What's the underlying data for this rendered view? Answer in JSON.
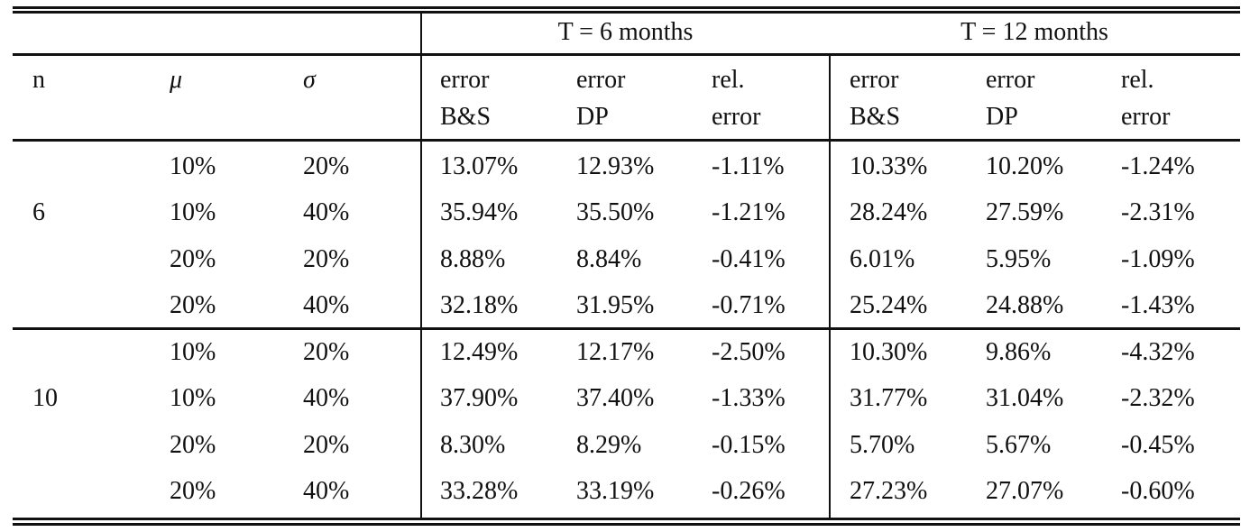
{
  "header": {
    "group1": "T = 6 months",
    "group2": "T = 12 months",
    "col_n": "n",
    "col_mu": "μ",
    "col_sigma": "σ",
    "cols": [
      {
        "line1": "error",
        "line2": "B&S"
      },
      {
        "line1": "error",
        "line2": "DP"
      },
      {
        "line1": "rel.",
        "line2": "error"
      },
      {
        "line1": "error",
        "line2": "B&S"
      },
      {
        "line1": "error",
        "line2": "DP"
      },
      {
        "line1": "rel.",
        "line2": "error"
      }
    ]
  },
  "blocks": [
    {
      "n": "6",
      "rows": [
        [
          "10%",
          "20%",
          "13.07%",
          "12.93%",
          "-1.11%",
          "10.33%",
          "10.20%",
          "-1.24%"
        ],
        [
          "10%",
          "40%",
          "35.94%",
          "35.50%",
          "-1.21%",
          "28.24%",
          "27.59%",
          "-2.31%"
        ],
        [
          "20%",
          "20%",
          "8.88%",
          "8.84%",
          "-0.41%",
          "6.01%",
          "5.95%",
          "-1.09%"
        ],
        [
          "20%",
          "40%",
          "32.18%",
          "31.95%",
          "-0.71%",
          "25.24%",
          "24.88%",
          "-1.43%"
        ]
      ]
    },
    {
      "n": "10",
      "rows": [
        [
          "10%",
          "20%",
          "12.49%",
          "12.17%",
          "-2.50%",
          "10.30%",
          "9.86%",
          "-4.32%"
        ],
        [
          "10%",
          "40%",
          "37.90%",
          "37.40%",
          "-1.33%",
          "31.77%",
          "31.04%",
          "-2.32%"
        ],
        [
          "20%",
          "20%",
          "8.30%",
          "8.29%",
          "-0.15%",
          "5.70%",
          "5.67%",
          "-0.45%"
        ],
        [
          "20%",
          "40%",
          "33.28%",
          "33.19%",
          "-0.26%",
          "27.23%",
          "27.07%",
          "-0.60%"
        ]
      ]
    }
  ]
}
